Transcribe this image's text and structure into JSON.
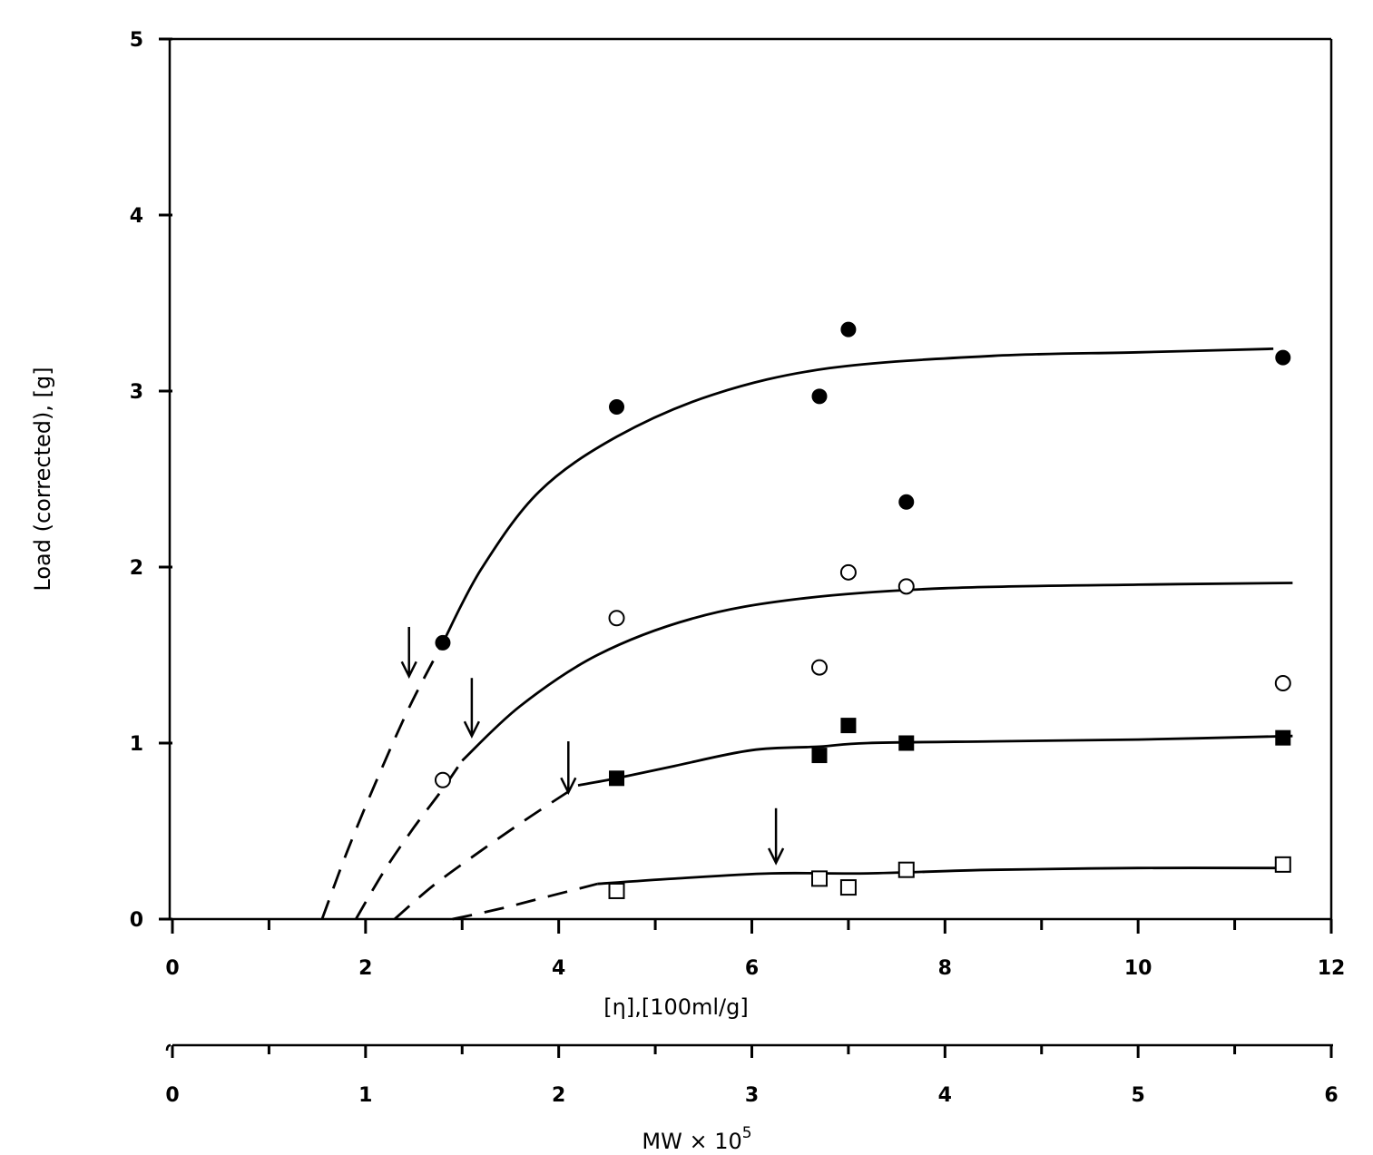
{
  "chart_data": {
    "type": "scatter",
    "title": "",
    "xlabel": "[η],[100ml/g]",
    "ylabel": "Load (corrected), [g]",
    "secondary_xlabel": "MW × 10⁵",
    "secondary_xlabel_base": "MW × 10",
    "secondary_xlabel_exp": "5",
    "xlim": [
      0,
      12
    ],
    "ylim": [
      0,
      5
    ],
    "x_ticks": [
      "0",
      "2",
      "4",
      "6",
      "8",
      "10",
      "12"
    ],
    "y_ticks": [
      "0",
      "1",
      "2",
      "3",
      "4",
      "5"
    ],
    "secondary_x_ticks": [
      "0",
      "1",
      "2",
      "3",
      "4",
      "5",
      "6"
    ],
    "grid": false,
    "series": [
      {
        "marker": "filled-circle",
        "points": [
          [
            2.8,
            1.57
          ],
          [
            4.6,
            2.91
          ],
          [
            6.7,
            2.97
          ],
          [
            7.0,
            3.35
          ],
          [
            7.6,
            2.37
          ],
          [
            11.5,
            3.19
          ]
        ],
        "fit_solid": [
          [
            2.8,
            1.57
          ],
          [
            3.2,
            1.99
          ],
          [
            3.8,
            2.43
          ],
          [
            4.6,
            2.74
          ],
          [
            5.6,
            2.98
          ],
          [
            6.8,
            3.13
          ],
          [
            8.5,
            3.2
          ],
          [
            10,
            3.22
          ],
          [
            11.4,
            3.24
          ]
        ],
        "fit_dashed": [
          [
            1.55,
            0
          ],
          [
            1.8,
            0.37
          ],
          [
            2.1,
            0.77
          ],
          [
            2.45,
            1.2
          ],
          [
            2.8,
            1.57
          ]
        ],
        "arrow_x": 2.45,
        "arrow_y_top": 1.66,
        "arrow_y_bottom": 1.38
      },
      {
        "marker": "open-circle",
        "points": [
          [
            2.8,
            0.79
          ],
          [
            4.6,
            1.71
          ],
          [
            6.7,
            1.43
          ],
          [
            7.0,
            1.97
          ],
          [
            7.6,
            1.89
          ],
          [
            11.5,
            1.34
          ]
        ],
        "fit_solid": [
          [
            3.0,
            0.9
          ],
          [
            3.6,
            1.21
          ],
          [
            4.4,
            1.5
          ],
          [
            5.4,
            1.71
          ],
          [
            6.5,
            1.82
          ],
          [
            8.0,
            1.88
          ],
          [
            10,
            1.9
          ],
          [
            11.6,
            1.91
          ]
        ],
        "fit_dashed": [
          [
            1.9,
            0
          ],
          [
            2.2,
            0.28
          ],
          [
            2.5,
            0.52
          ],
          [
            2.8,
            0.74
          ],
          [
            3.0,
            0.9
          ]
        ],
        "arrow_x": 3.1,
        "arrow_y_top": 1.37,
        "arrow_y_bottom": 1.04
      },
      {
        "marker": "filled-square",
        "points": [
          [
            4.6,
            0.8
          ],
          [
            6.7,
            0.93
          ],
          [
            7.0,
            1.1
          ],
          [
            7.6,
            1.0
          ],
          [
            11.5,
            1.03
          ]
        ],
        "fit_solid": [
          [
            4.2,
            0.76
          ],
          [
            4.6,
            0.8
          ],
          [
            5.2,
            0.87
          ],
          [
            6.0,
            0.96
          ],
          [
            6.7,
            0.98
          ],
          [
            7.2,
            1.0
          ],
          [
            8.5,
            1.01
          ],
          [
            10,
            1.02
          ],
          [
            11.6,
            1.04
          ]
        ],
        "fit_dashed": [
          [
            2.3,
            0
          ],
          [
            2.7,
            0.19
          ],
          [
            3.2,
            0.39
          ],
          [
            3.7,
            0.58
          ],
          [
            4.2,
            0.76
          ]
        ],
        "arrow_x": 4.1,
        "arrow_y_top": 1.01,
        "arrow_y_bottom": 0.72
      },
      {
        "marker": "open-square",
        "points": [
          [
            4.6,
            0.16
          ],
          [
            6.7,
            0.23
          ],
          [
            7.0,
            0.18
          ],
          [
            7.6,
            0.28
          ],
          [
            11.5,
            0.31
          ]
        ],
        "fit_solid": [
          [
            4.4,
            0.2
          ],
          [
            5.2,
            0.23
          ],
          [
            6.2,
            0.26
          ],
          [
            7.2,
            0.26
          ],
          [
            8.5,
            0.28
          ],
          [
            10,
            0.29
          ],
          [
            11.5,
            0.29
          ]
        ],
        "fit_dashed": [
          [
            2.9,
            0
          ],
          [
            3.4,
            0.06
          ],
          [
            3.9,
            0.13
          ],
          [
            4.4,
            0.2
          ]
        ],
        "arrow_x": 6.25,
        "arrow_y_top": 0.63,
        "arrow_y_bottom": 0.32
      }
    ]
  }
}
